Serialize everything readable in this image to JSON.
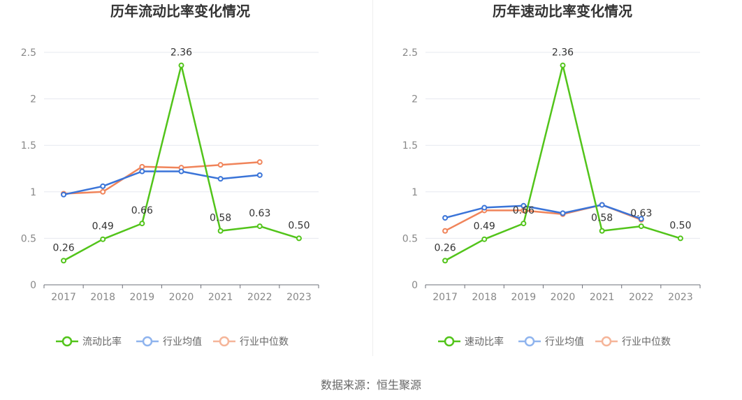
{
  "colors": {
    "main": "#52c41a",
    "avg": "#3a74d8",
    "median": "#f0845a",
    "legend_avg": "#8fb4ee",
    "legend_median": "#f5b599"
  },
  "chart_data": [
    {
      "type": "line",
      "title": "历年流动比率变化情况",
      "x": [
        "2017",
        "2018",
        "2019",
        "2020",
        "2021",
        "2022",
        "2023"
      ],
      "ylim": [
        0,
        2.5
      ],
      "yticks": [
        "0",
        "0.5",
        "1",
        "1.5",
        "2",
        "2.5"
      ],
      "grid": true,
      "legend_position": "bottom",
      "series": [
        {
          "name": "流动比率",
          "values": [
            0.26,
            0.49,
            0.66,
            2.36,
            0.58,
            0.63,
            0.5
          ],
          "labels": [
            "0.26",
            "0.49",
            "0.66",
            "2.36",
            "0.58",
            "0.63",
            "0.50"
          ]
        },
        {
          "name": "行业均值",
          "values": [
            0.97,
            1.06,
            1.22,
            1.22,
            1.14,
            1.18,
            null
          ]
        },
        {
          "name": "行业中位数",
          "values": [
            0.98,
            1.0,
            1.27,
            1.26,
            1.29,
            1.32,
            null
          ]
        }
      ]
    },
    {
      "type": "line",
      "title": "历年速动比率变化情况",
      "x": [
        "2017",
        "2018",
        "2019",
        "2020",
        "2021",
        "2022",
        "2023"
      ],
      "ylim": [
        0,
        2.5
      ],
      "yticks": [
        "0",
        "0.5",
        "1",
        "1.5",
        "2",
        "2.5"
      ],
      "grid": true,
      "legend_position": "bottom",
      "series": [
        {
          "name": "速动比率",
          "values": [
            0.26,
            0.49,
            0.66,
            2.36,
            0.58,
            0.63,
            0.5
          ],
          "labels": [
            "0.26",
            "0.49",
            "0.66",
            "2.36",
            "0.58",
            "0.63",
            "0.50"
          ]
        },
        {
          "name": "行业均值",
          "values": [
            0.72,
            0.83,
            0.85,
            0.77,
            0.86,
            0.71,
            null
          ]
        },
        {
          "name": "行业中位数",
          "values": [
            0.58,
            0.8,
            0.8,
            0.76,
            0.86,
            0.7,
            null
          ]
        }
      ]
    }
  ],
  "source": "数据来源：恒生聚源"
}
